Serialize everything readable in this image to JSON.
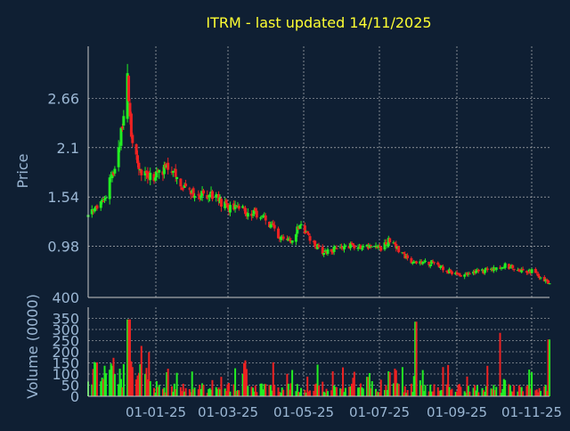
{
  "title": "ITRM - last updated 14/11/2025",
  "colors": {
    "background": "#0f1f33",
    "axis": "#c8c8c8",
    "grid": "#d0d0d0",
    "title": "#ffff33",
    "tick_label": "#9bb7d4",
    "up": "#22ee22",
    "down": "#ee2222"
  },
  "chart_data": [
    {
      "type": "candlestick",
      "ylabel": "Price",
      "y_ticks": [
        "0.98",
        "1.54",
        "2.1",
        "2.66"
      ],
      "ylim": [
        0.4,
        3.25
      ],
      "x_tick_labels": [
        "01-01-25",
        "01-03-25",
        "01-05-25",
        "01-07-25",
        "01-09-25",
        "01-11-25"
      ],
      "x_range": [
        "2024-11-15",
        "2025-11-14"
      ],
      "grid": true,
      "closes_approx": [
        {
          "date": "2024-11-15",
          "close": 1.32
        },
        {
          "date": "2024-11-25",
          "close": 1.45
        },
        {
          "date": "2024-12-02",
          "close": 1.7
        },
        {
          "date": "2024-12-09",
          "close": 2.05
        },
        {
          "date": "2024-12-13",
          "close": 2.45
        },
        {
          "date": "2024-12-16",
          "close": 2.95
        },
        {
          "date": "2024-12-19",
          "close": 2.25
        },
        {
          "date": "2024-12-26",
          "close": 1.8
        },
        {
          "date": "2025-01-06",
          "close": 1.78
        },
        {
          "date": "2025-01-16",
          "close": 1.85
        },
        {
          "date": "2025-01-25",
          "close": 1.72
        },
        {
          "date": "2025-02-06",
          "close": 1.55
        },
        {
          "date": "2025-02-20",
          "close": 1.58
        },
        {
          "date": "2025-03-05",
          "close": 1.42
        },
        {
          "date": "2025-03-20",
          "close": 1.38
        },
        {
          "date": "2025-04-02",
          "close": 1.3
        },
        {
          "date": "2025-04-15",
          "close": 1.1
        },
        {
          "date": "2025-04-25",
          "close": 1.05
        },
        {
          "date": "2025-05-01",
          "close": 1.25
        },
        {
          "date": "2025-05-10",
          "close": 1.02
        },
        {
          "date": "2025-05-20",
          "close": 0.92
        },
        {
          "date": "2025-06-01",
          "close": 0.95
        },
        {
          "date": "2025-06-10",
          "close": 1.0
        },
        {
          "date": "2025-06-25",
          "close": 0.97
        },
        {
          "date": "2025-07-05",
          "close": 0.95
        },
        {
          "date": "2025-07-12",
          "close": 1.08
        },
        {
          "date": "2025-07-20",
          "close": 0.9
        },
        {
          "date": "2025-08-01",
          "close": 0.78
        },
        {
          "date": "2025-08-15",
          "close": 0.8
        },
        {
          "date": "2025-08-25",
          "close": 0.7
        },
        {
          "date": "2025-09-05",
          "close": 0.66
        },
        {
          "date": "2025-09-20",
          "close": 0.69
        },
        {
          "date": "2025-10-01",
          "close": 0.72
        },
        {
          "date": "2025-10-10",
          "close": 0.76
        },
        {
          "date": "2025-10-20",
          "close": 0.72
        },
        {
          "date": "2025-11-01",
          "close": 0.69
        },
        {
          "date": "2025-11-10",
          "close": 0.6
        },
        {
          "date": "2025-11-14",
          "close": 0.55
        }
      ]
    },
    {
      "type": "bar",
      "ylabel": "Volume (0000)",
      "y_ticks": [
        "0",
        "50",
        "100",
        "150",
        "200",
        "250",
        "300",
        "350",
        "400"
      ],
      "ylim": [
        0,
        400
      ],
      "x_tick_labels": [
        "01-01-25",
        "01-03-25",
        "01-05-25",
        "01-07-25",
        "01-09-25",
        "01-11-25"
      ],
      "grid": true,
      "notable_spikes": [
        {
          "date": "2024-12-17",
          "value": 345
        },
        {
          "date": "2025-08-01",
          "value": 335
        },
        {
          "date": "2025-10-05",
          "value": 285
        },
        {
          "date": "2025-11-14",
          "value": 255
        }
      ]
    }
  ]
}
